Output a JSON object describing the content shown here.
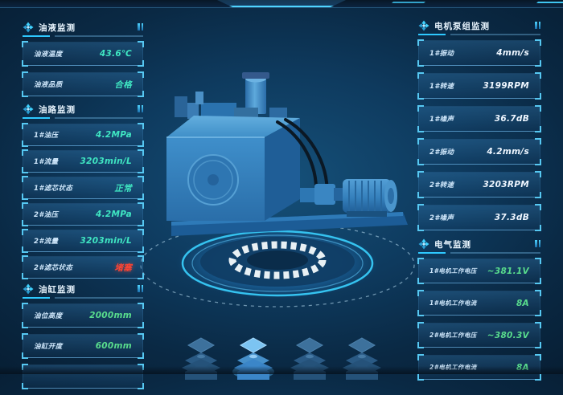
{
  "colors": {
    "accent": "#35c7f0",
    "teal": "#3fe6c2",
    "green": "#59dd8d",
    "white": "#eef6ff",
    "red": "#ff4433",
    "background": "#0a2944"
  },
  "left_panels": [
    {
      "id": "oil-liquid",
      "title": "油液监测",
      "rows": [
        {
          "label": "油液温度",
          "value": "43.6℃",
          "color": "teal"
        },
        {
          "label": "油液品质",
          "value": "合格",
          "color": "teal"
        }
      ]
    },
    {
      "id": "oil-circuit",
      "title": "油路监测",
      "rows": [
        {
          "label": "1#油压",
          "value": "4.2MPa",
          "color": "teal"
        },
        {
          "label": "1#流量",
          "value": "3203min/L",
          "color": "teal"
        },
        {
          "label": "1#滤芯状态",
          "value": "正常",
          "color": "teal"
        },
        {
          "label": "2#油压",
          "value": "4.2MPa",
          "color": "teal"
        },
        {
          "label": "2#流量",
          "value": "3203min/L",
          "color": "teal"
        },
        {
          "label": "2#滤芯状态",
          "value": "堵塞",
          "color": "red"
        }
      ]
    },
    {
      "id": "oil-cylinder",
      "title": "油缸监测",
      "partial_frame": true,
      "rows": [
        {
          "label": "油位高度",
          "value": "2000mm",
          "color": "green"
        },
        {
          "label": "油缸开度",
          "value": "600mm",
          "color": "green"
        }
      ]
    }
  ],
  "right_panels": [
    {
      "id": "motor-pump",
      "title": "电机泵组监测",
      "rows": [
        {
          "label": "1#振动",
          "value": "4mm/s",
          "color": "white"
        },
        {
          "label": "1#转速",
          "value": "3199RPM",
          "color": "white"
        },
        {
          "label": "1#噪声",
          "value": "36.7dB",
          "color": "white"
        },
        {
          "label": "2#振动",
          "value": "4.2mm/s",
          "color": "white"
        },
        {
          "label": "2#转速",
          "value": "3203RPM",
          "color": "white"
        },
        {
          "label": "2#噪声",
          "value": "37.3dB",
          "color": "white"
        }
      ]
    },
    {
      "id": "electrical",
      "title": "电气监测",
      "rows": [
        {
          "label": "1#电机工作电压",
          "value": "~381.1V",
          "color": "green"
        },
        {
          "label": "1#电机工作电流",
          "value": "8A",
          "color": "green"
        },
        {
          "label": "2#电机工作电压",
          "value": "~380.3V",
          "color": "green"
        },
        {
          "label": "2#电机工作电流",
          "value": "8A",
          "color": "green"
        }
      ]
    }
  ],
  "bottom_nav": {
    "items": [
      {
        "id": "layer-stack-1",
        "active": false
      },
      {
        "id": "layer-stack-2",
        "active": true
      },
      {
        "id": "layer-stack-3",
        "active": false
      },
      {
        "id": "layer-stack-4",
        "active": false
      }
    ]
  }
}
